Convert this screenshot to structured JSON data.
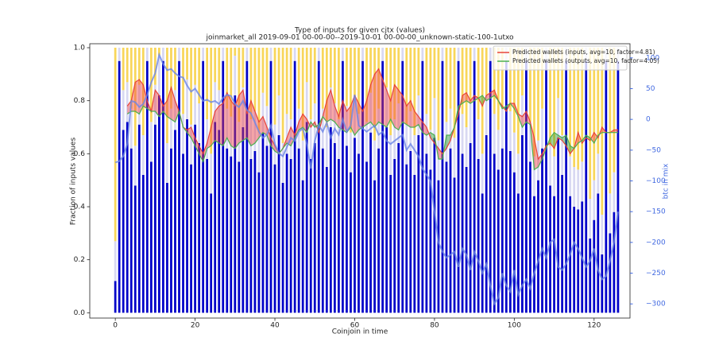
{
  "chart_data": {
    "type": "bar",
    "stacked": true,
    "title": "Type of inputs for given cjtx (values)",
    "subtitle": "joinmarket_all 2019-09-01 00-00-00--2019-10-01 00-00-00_unknown-static-100-1utxo",
    "xlabel": "Coinjoin in time",
    "ylabel": "Fraction of inputs values",
    "y2label": "btc in mix",
    "xlim": [
      -6.4,
      129.0
    ],
    "ylim": [
      -0.02,
      1.015
    ],
    "y2lim": [
      -323,
      123
    ],
    "xticks": [
      0,
      20,
      40,
      60,
      80,
      100,
      120
    ],
    "yticks": [
      {
        "value": 0,
        "label": "0.0"
      },
      {
        "value": 0.2,
        "label": "0.2"
      },
      {
        "value": 0.4,
        "label": "0.4"
      },
      {
        "value": 0.6,
        "label": "0.6"
      },
      {
        "value": 0.8,
        "label": "0.8"
      },
      {
        "value": 1,
        "label": "1.0"
      }
    ],
    "y2ticks": [
      {
        "value": -300,
        "label": "−300"
      },
      {
        "value": -250,
        "label": "−250"
      },
      {
        "value": -200,
        "label": "−200"
      },
      {
        "value": -150,
        "label": "−150"
      },
      {
        "value": -100,
        "label": "−100"
      },
      {
        "value": -50,
        "label": "−50"
      },
      0,
      50,
      100
    ],
    "y2color": "#4169e1",
    "legend": "upper right",
    "fill_above_color": "#f04040",
    "fill_below_color": "#2e9a2e",
    "x": [
      0,
      1,
      2,
      3,
      4,
      5,
      6,
      7,
      8,
      9,
      10,
      11,
      12,
      13,
      14,
      15,
      16,
      17,
      18,
      19,
      20,
      21,
      22,
      23,
      24,
      25,
      26,
      27,
      28,
      29,
      30,
      31,
      32,
      33,
      34,
      35,
      36,
      37,
      38,
      39,
      40,
      41,
      42,
      43,
      44,
      45,
      46,
      47,
      48,
      49,
      50,
      51,
      52,
      53,
      54,
      55,
      56,
      57,
      58,
      59,
      60,
      61,
      62,
      63,
      64,
      65,
      66,
      67,
      68,
      69,
      70,
      71,
      72,
      73,
      74,
      75,
      76,
      77,
      78,
      79,
      80,
      81,
      82,
      83,
      84,
      85,
      86,
      87,
      88,
      89,
      90,
      91,
      92,
      93,
      94,
      95,
      96,
      97,
      98,
      99,
      100,
      101,
      102,
      103,
      104,
      105,
      106,
      107,
      108,
      109,
      110,
      111,
      112,
      113,
      114,
      115,
      116,
      117,
      118,
      119,
      120,
      121,
      122,
      123,
      124,
      125,
      126
    ],
    "series": [
      {
        "type": "bar",
        "color": "#0000c8",
        "values": [
          0.12,
          0.95,
          0.69,
          0.72,
          0.62,
          0.48,
          0.71,
          0.52,
          0.95,
          0.57,
          0.71,
          0.82,
          0.95,
          0.49,
          0.62,
          0.69,
          0.95,
          0.6,
          0.73,
          0.56,
          0.71,
          0.64,
          0.95,
          0.58,
          0.45,
          0.72,
          0.69,
          0.95,
          0.62,
          0.59,
          0.82,
          0.57,
          0.7,
          0.95,
          0.58,
          0.61,
          0.53,
          0.68,
          0.63,
          0.95,
          0.56,
          0.67,
          0.49,
          0.6,
          0.58,
          0.95,
          0.62,
          0.5,
          0.72,
          0.58,
          0.64,
          0.95,
          0.62,
          0.55,
          0.7,
          0.64,
          0.58,
          0.95,
          0.63,
          0.53,
          0.66,
          0.6,
          0.95,
          0.57,
          0.68,
          0.5,
          0.62,
          0.95,
          0.7,
          0.52,
          0.58,
          0.64,
          0.95,
          0.56,
          0.61,
          0.52,
          0.67,
          0.95,
          0.6,
          0.54,
          0.66,
          0.5,
          0.95,
          0.57,
          0.62,
          0.51,
          0.95,
          0.6,
          0.55,
          0.64,
          0.95,
          0.58,
          0.45,
          0.67,
          0.95,
          0.6,
          0.54,
          0.62,
          0.95,
          0.61,
          0.53,
          0.45,
          0.67,
          0.95,
          0.57,
          0.44,
          0.5,
          0.62,
          0.95,
          0.48,
          0.44,
          0.66,
          0.52,
          0.95,
          0.44,
          0.4,
          0.39,
          0.42,
          0.95,
          0.28,
          0.35,
          0.45,
          0.22,
          0.95,
          0.3,
          0.38,
          0.95
        ]
      },
      {
        "type": "bar",
        "color": "#d8d8f2",
        "values": [
          0.15,
          0.05,
          0.15,
          0.15,
          0.15,
          0.15,
          0.15,
          0.15,
          0.05,
          0.15,
          0.15,
          0.15,
          0.05,
          0.15,
          0.15,
          0.15,
          0.05,
          0.15,
          0.15,
          0.15,
          0.15,
          0.15,
          0.05,
          0.15,
          0.15,
          0.15,
          0.15,
          0.05,
          0.15,
          0.15,
          0.15,
          0.15,
          0.15,
          0.05,
          0.15,
          0.15,
          0.15,
          0.15,
          0.15,
          0.05,
          0.15,
          0.15,
          0.15,
          0.15,
          0.15,
          0.05,
          0.15,
          0.15,
          0.15,
          0.15,
          0.15,
          0.05,
          0.15,
          0.15,
          0.15,
          0.15,
          0.15,
          0.05,
          0.15,
          0.15,
          0.15,
          0.15,
          0.05,
          0.15,
          0.15,
          0.15,
          0.15,
          0.05,
          0.15,
          0.15,
          0.15,
          0.15,
          0.05,
          0.15,
          0.15,
          0.15,
          0.15,
          0.05,
          0.15,
          0.15,
          0.15,
          0.15,
          0.05,
          0.15,
          0.15,
          0.15,
          0.05,
          0.15,
          0.15,
          0.15,
          0.05,
          0.15,
          0.15,
          0.15,
          0.05,
          0.15,
          0.15,
          0.15,
          0.05,
          0.15,
          0.15,
          0.15,
          0.15,
          0.05,
          0.15,
          0.15,
          0.15,
          0.15,
          0.05,
          0.15,
          0.15,
          0.15,
          0.15,
          0.05,
          0.15,
          0.15,
          0.15,
          0.15,
          0.05,
          0.15,
          0.15,
          0.15,
          0.15,
          0.05,
          0.15,
          0.15,
          0.05
        ]
      },
      {
        "type": "bar",
        "color": "#f8d65a",
        "values": [
          0.73,
          0,
          0.16,
          0.13,
          0.23,
          0.37,
          0.14,
          0.33,
          0,
          0.28,
          0.14,
          0.03,
          0,
          0.36,
          0.23,
          0.16,
          0,
          0.25,
          0.12,
          0.29,
          0.14,
          0.21,
          0,
          0.27,
          0.4,
          0.13,
          0.16,
          0,
          0.23,
          0.26,
          0.03,
          0.28,
          0.15,
          0,
          0.27,
          0.24,
          0.32,
          0.17,
          0.22,
          0,
          0.29,
          0.18,
          0.36,
          0.25,
          0.27,
          0,
          0.23,
          0.35,
          0.13,
          0.27,
          0.21,
          0,
          0.23,
          0.3,
          0.15,
          0.21,
          0.27,
          0,
          0.22,
          0.32,
          0.19,
          0.25,
          0,
          0.28,
          0.17,
          0.35,
          0.23,
          0,
          0.15,
          0.33,
          0.27,
          0.21,
          0,
          0.29,
          0.24,
          0.33,
          0.18,
          0,
          0.25,
          0.31,
          0.19,
          0.35,
          0,
          0.28,
          0.23,
          0.34,
          0,
          0.25,
          0.3,
          0.21,
          0,
          0.27,
          0.4,
          0.18,
          0,
          0.25,
          0.31,
          0.23,
          0,
          0.24,
          0.32,
          0.4,
          0.18,
          0,
          0.28,
          0.41,
          0.35,
          0.23,
          0,
          0.37,
          0.41,
          0.19,
          0.33,
          0,
          0.41,
          0.45,
          0.46,
          0.43,
          0,
          0.57,
          0.5,
          0.4,
          0.63,
          0,
          0.55,
          0.47,
          0
        ]
      },
      {
        "type": "line",
        "name": "Predicted wallets (inputs, avg=10, factor=4.81)",
        "color": "#e8443a",
        "values": [
          null,
          null,
          null,
          0.78,
          0.8,
          0.87,
          0.88,
          0.86,
          0.8,
          0.76,
          0.84,
          0.82,
          0.78,
          0.8,
          0.85,
          0.8,
          0.76,
          0.7,
          0.69,
          0.7,
          0.66,
          0.63,
          0.6,
          0.64,
          0.7,
          0.76,
          0.78,
          0.79,
          0.83,
          0.8,
          0.78,
          0.82,
          0.84,
          0.75,
          0.8,
          0.76,
          0.72,
          0.74,
          0.7,
          0.66,
          0.63,
          0.6,
          0.62,
          0.66,
          0.7,
          0.67,
          0.72,
          0.75,
          0.73,
          0.7,
          0.72,
          0.68,
          0.74,
          0.8,
          0.84,
          0.78,
          0.74,
          0.8,
          0.76,
          0.78,
          0.82,
          0.79,
          0.76,
          0.8,
          0.86,
          0.9,
          0.92,
          0.88,
          0.84,
          0.8,
          0.86,
          0.84,
          0.82,
          0.78,
          0.8,
          0.76,
          0.74,
          0.72,
          0.7,
          0.66,
          0.64,
          0.62,
          0.6,
          0.62,
          0.65,
          0.7,
          0.75,
          0.82,
          0.83,
          0.8,
          0.82,
          0.81,
          0.78,
          0.82,
          0.83,
          0.84,
          0.8,
          0.78,
          0.76,
          0.79,
          0.79,
          0.75,
          0.74,
          0.76,
          0.72,
          0.66,
          0.58,
          0.6,
          0.63,
          0.64,
          0.62,
          0.66,
          0.65,
          0.63,
          0.6,
          0.62,
          0.68,
          0.64,
          0.66,
          0.65,
          0.68,
          0.66,
          0.7,
          0.68,
          0.68,
          0.69,
          0.69
        ]
      },
      {
        "type": "line",
        "name": "Predicted wallets (outputs, avg=10, factor=4.05)",
        "color": "#4caf50",
        "values": [
          null,
          null,
          null,
          0.75,
          0.76,
          0.76,
          0.75,
          0.78,
          0.77,
          0.76,
          0.76,
          0.74,
          0.76,
          0.74,
          0.73,
          0.72,
          0.76,
          0.7,
          0.68,
          0.66,
          0.63,
          0.6,
          0.57,
          0.62,
          0.63,
          0.65,
          0.64,
          0.63,
          0.66,
          0.63,
          0.62,
          0.64,
          0.65,
          0.66,
          0.63,
          0.64,
          0.66,
          0.68,
          0.67,
          0.63,
          0.61,
          0.6,
          0.62,
          0.64,
          0.63,
          0.66,
          0.69,
          0.7,
          0.68,
          0.72,
          0.7,
          0.71,
          0.74,
          0.72,
          0.73,
          0.72,
          0.7,
          0.69,
          0.68,
          0.7,
          0.67,
          0.69,
          0.7,
          0.71,
          0.72,
          0.7,
          0.72,
          0.71,
          0.7,
          0.73,
          0.7,
          0.69,
          0.72,
          0.71,
          0.7,
          0.7,
          0.71,
          0.68,
          0.67,
          0.68,
          0.67,
          0.58,
          0.58,
          0.67,
          0.67,
          0.7,
          0.78,
          0.79,
          0.8,
          0.79,
          0.8,
          0.81,
          0.82,
          0.8,
          0.81,
          0.82,
          0.8,
          0.77,
          0.78,
          0.79,
          0.77,
          0.74,
          0.7,
          0.72,
          0.71,
          0.54,
          0.55,
          0.58,
          0.62,
          0.66,
          0.68,
          0.67,
          0.66,
          0.67,
          0.63,
          0.62,
          0.64,
          0.65,
          0.67,
          0.66,
          0.64,
          0.67,
          0.68,
          0.68,
          0.68,
          0.68,
          0.68
        ]
      },
      {
        "type": "line",
        "axis": "y2",
        "color": "#6b86e6",
        "values": [
          -70,
          -68,
          -60,
          -40,
          30,
          28,
          20,
          25,
          40,
          60,
          75,
          105,
          90,
          80,
          82,
          75,
          70,
          68,
          55,
          45,
          50,
          40,
          30,
          32,
          28,
          30,
          25,
          35,
          40,
          38,
          25,
          20,
          30,
          15,
          10,
          -5,
          -20,
          -30,
          -25,
          -10,
          -40,
          -55,
          -60,
          -45,
          -30,
          -35,
          -20,
          -15,
          -40,
          -80,
          -35,
          -10,
          -20,
          -5,
          -30,
          -15,
          -25,
          0,
          -20,
          -10,
          40,
          -10,
          -15,
          -20,
          -15,
          -10,
          -25,
          -20,
          -35,
          -40,
          -35,
          -30,
          -25,
          -50,
          -40,
          -50,
          -60,
          -80,
          -90,
          -100,
          -150,
          -200,
          -215,
          -225,
          -220,
          -215,
          -240,
          -210,
          -220,
          -245,
          -215,
          -230,
          -250,
          -235,
          -270,
          -300,
          -290,
          -250,
          -270,
          -280,
          -245,
          -285,
          -270,
          -260,
          -275,
          -250,
          -230,
          -210,
          -225,
          -200,
          -195,
          -240,
          -245,
          -235,
          -220,
          -200,
          -210,
          -225,
          -240,
          -230,
          -210,
          -245,
          -260,
          -255,
          -230,
          -200,
          -150
        ]
      }
    ]
  }
}
